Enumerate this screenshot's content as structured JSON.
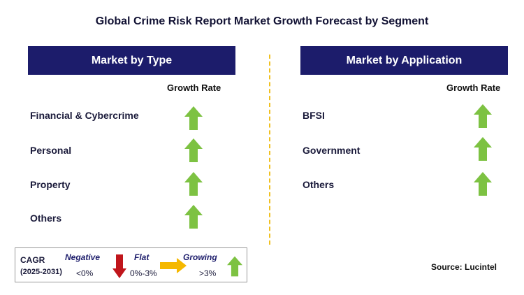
{
  "title": "Global Crime Risk Report Market Growth Forecast by Segment",
  "panels": {
    "type": {
      "header": "Market by Type",
      "growth_label": "Growth Rate",
      "items": [
        {
          "label": "Financial & Cybercrime",
          "trend": "growing"
        },
        {
          "label": "Personal",
          "trend": "growing"
        },
        {
          "label": "Property",
          "trend": "growing"
        },
        {
          "label": "Others",
          "trend": "growing"
        }
      ]
    },
    "application": {
      "header": "Market by Application",
      "growth_label": "Growth Rate",
      "items": [
        {
          "label": "BFSI",
          "trend": "growing"
        },
        {
          "label": "Government",
          "trend": "growing"
        },
        {
          "label": "Others",
          "trend": "growing"
        }
      ]
    }
  },
  "legend": {
    "cagr": "CAGR",
    "period": "(2025-2031)",
    "negative_label": "Negative",
    "negative_range": "<0%",
    "flat_label": "Flat",
    "flat_range": "0%-3%",
    "growing_label": "Growing",
    "growing_range": ">3%"
  },
  "source": "Source: Lucintel",
  "colors": {
    "header_bg": "#1c1c6b",
    "up_arrow": "#7dc242",
    "down_arrow": "#c0151b",
    "flat_arrow": "#f5b800",
    "divider": "#f0c020"
  }
}
